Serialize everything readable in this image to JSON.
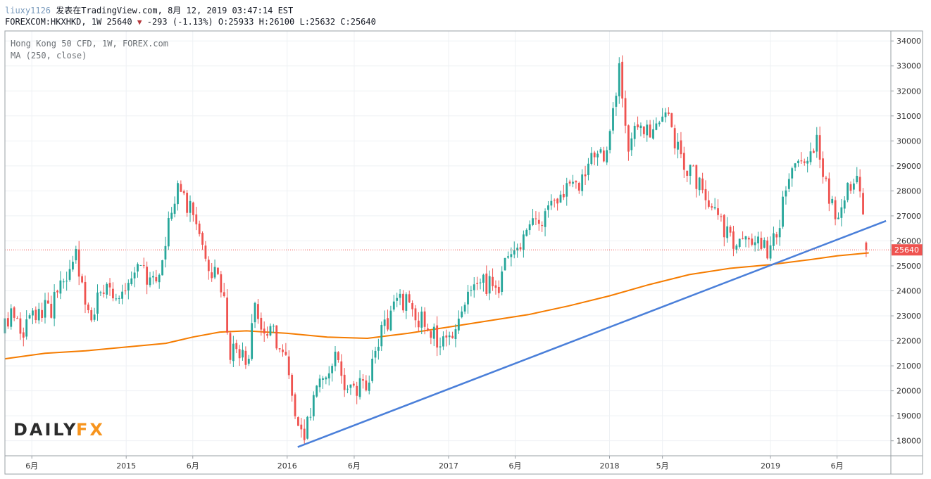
{
  "header": {
    "author": "liuxy1126",
    "published": "发表在TradingView.com, 8月 12, 2019 03:47:14 EST",
    "symbol_line": "FOREXCOM:HKXHKD, 1W 25640",
    "change": "-293 (-1.13%)",
    "ohlc": "O:25933 H:26100 L:25632 C:25640"
  },
  "legend": {
    "title": "Hong Kong 50 CFD, 1W, FOREX.com",
    "indicator": "MA (250, close)"
  },
  "logo": {
    "part1": "DAILY",
    "part2": "FX"
  },
  "colors": {
    "up": "#26a69a",
    "down": "#ef5350",
    "ma": "#f57c00",
    "trendline": "#4a7fd9",
    "price_label_bg": "#ef5350",
    "logo_orange": "#f7941d",
    "logo_dark": "#2b2b2b"
  },
  "chart_data": {
    "type": "candlestick",
    "title": "Hong Kong 50 CFD, 1W, FOREX.com",
    "current_price": 25640,
    "current_price_label": "25640",
    "ylim": [
      17400,
      34400
    ],
    "yticks": [
      "18000",
      "19000",
      "20000",
      "21000",
      "22000",
      "23000",
      "24000",
      "25000",
      "26000",
      "27000",
      "28000",
      "29000",
      "30000",
      "31000",
      "32000",
      "33000",
      "34000"
    ],
    "xlim": [
      "2014-04-01",
      "2019-10-01"
    ],
    "xticks": [
      {
        "label": "6月",
        "date": "2014-06"
      },
      {
        "label": "2015",
        "date": "2015-01"
      },
      {
        "label": "6月",
        "date": "2015-06"
      },
      {
        "label": "2016",
        "date": "2016-01"
      },
      {
        "label": "6月",
        "date": "2016-06"
      },
      {
        "label": "2017",
        "date": "2017-01"
      },
      {
        "label": "6月",
        "date": "2017-06"
      },
      {
        "label": "2018",
        "date": "2018-01"
      },
      {
        "label": "5月",
        "date": "2018-05"
      },
      {
        "label": "2019",
        "date": "2019-01"
      },
      {
        "label": "6月",
        "date": "2019-06"
      }
    ],
    "price_path": [
      [
        "2014-04-01",
        22500
      ],
      [
        "2014-04-20",
        23000
      ],
      [
        "2014-05-15",
        22400
      ],
      [
        "2014-06-10",
        23200
      ],
      [
        "2014-07-15",
        23300
      ],
      [
        "2014-08-20",
        24700
      ],
      [
        "2014-09-10",
        25300
      ],
      [
        "2014-10-08",
        22900
      ],
      [
        "2014-11-10",
        24000
      ],
      [
        "2014-12-15",
        23300
      ],
      [
        "2015-01-20",
        24800
      ],
      [
        "2015-02-15",
        24600
      ],
      [
        "2015-03-10",
        24100
      ],
      [
        "2015-04-15",
        27600
      ],
      [
        "2015-04-28",
        28300
      ],
      [
        "2015-05-25",
        27300
      ],
      [
        "2015-06-20",
        26300
      ],
      [
        "2015-07-08",
        24300
      ],
      [
        "2015-07-20",
        24800
      ],
      [
        "2015-08-10",
        23600
      ],
      [
        "2015-08-25",
        21300
      ],
      [
        "2015-09-10",
        22000
      ],
      [
        "2015-09-28",
        20800
      ],
      [
        "2015-10-20",
        23300
      ],
      [
        "2015-11-15",
        22400
      ],
      [
        "2015-12-20",
        21900
      ],
      [
        "2016-01-20",
        19300
      ],
      [
        "2016-02-12",
        18300
      ],
      [
        "2016-03-15",
        20800
      ],
      [
        "2016-04-20",
        21200
      ],
      [
        "2016-05-20",
        19900
      ],
      [
        "2016-06-15",
        20400
      ],
      [
        "2016-06-28",
        20200
      ],
      [
        "2016-07-20",
        21900
      ],
      [
        "2016-08-20",
        23000
      ],
      [
        "2016-09-10",
        23800
      ],
      [
        "2016-10-15",
        23100
      ],
      [
        "2016-11-15",
        22500
      ],
      [
        "2016-12-15",
        21800
      ],
      [
        "2017-01-20",
        22800
      ],
      [
        "2017-02-20",
        23900
      ],
      [
        "2017-03-20",
        24200
      ],
      [
        "2017-04-20",
        24100
      ],
      [
        "2017-05-20",
        25400
      ],
      [
        "2017-06-15",
        25800
      ],
      [
        "2017-07-20",
        26700
      ],
      [
        "2017-08-20",
        27500
      ],
      [
        "2017-09-20",
        27900
      ],
      [
        "2017-10-20",
        28300
      ],
      [
        "2017-11-20",
        29500
      ],
      [
        "2017-12-20",
        29200
      ],
      [
        "2018-01-26",
        33100
      ],
      [
        "2018-02-09",
        29500
      ],
      [
        "2018-03-10",
        30800
      ],
      [
        "2018-04-10",
        30200
      ],
      [
        "2018-05-10",
        31000
      ],
      [
        "2018-06-15",
        29200
      ],
      [
        "2018-07-20",
        28300
      ],
      [
        "2018-08-15",
        27600
      ],
      [
        "2018-09-10",
        26900
      ],
      [
        "2018-10-15",
        25500
      ],
      [
        "2018-11-15",
        26300
      ],
      [
        "2018-12-28",
        25500
      ],
      [
        "2019-01-20",
        26800
      ],
      [
        "2019-02-20",
        28600
      ],
      [
        "2019-03-20",
        29000
      ],
      [
        "2019-04-15",
        30100
      ],
      [
        "2019-05-10",
        28100
      ],
      [
        "2019-06-03",
        26900
      ],
      [
        "2019-06-28",
        28500
      ],
      [
        "2019-07-20",
        28200
      ],
      [
        "2019-08-05",
        26000
      ],
      [
        "2019-08-12",
        25640
      ]
    ],
    "ma_250": [
      [
        "2014-04-01",
        21280
      ],
      [
        "2014-07-01",
        21500
      ],
      [
        "2014-10-01",
        21600
      ],
      [
        "2015-01-01",
        21750
      ],
      [
        "2015-04-01",
        21900
      ],
      [
        "2015-06-01",
        22150
      ],
      [
        "2015-08-01",
        22350
      ],
      [
        "2015-10-01",
        22400
      ],
      [
        "2016-01-01",
        22300
      ],
      [
        "2016-04-01",
        22150
      ],
      [
        "2016-07-01",
        22100
      ],
      [
        "2016-10-01",
        22300
      ],
      [
        "2017-01-01",
        22550
      ],
      [
        "2017-04-01",
        22800
      ],
      [
        "2017-07-01",
        23050
      ],
      [
        "2017-10-01",
        23400
      ],
      [
        "2018-01-01",
        23800
      ],
      [
        "2018-04-01",
        24250
      ],
      [
        "2018-07-01",
        24650
      ],
      [
        "2018-10-01",
        24900
      ],
      [
        "2019-01-01",
        25050
      ],
      [
        "2019-04-01",
        25250
      ],
      [
        "2019-06-01",
        25400
      ],
      [
        "2019-08-12",
        25520
      ]
    ],
    "trendline": [
      [
        "2016-01-25",
        17750
      ],
      [
        "2019-09-20",
        26800
      ]
    ]
  }
}
